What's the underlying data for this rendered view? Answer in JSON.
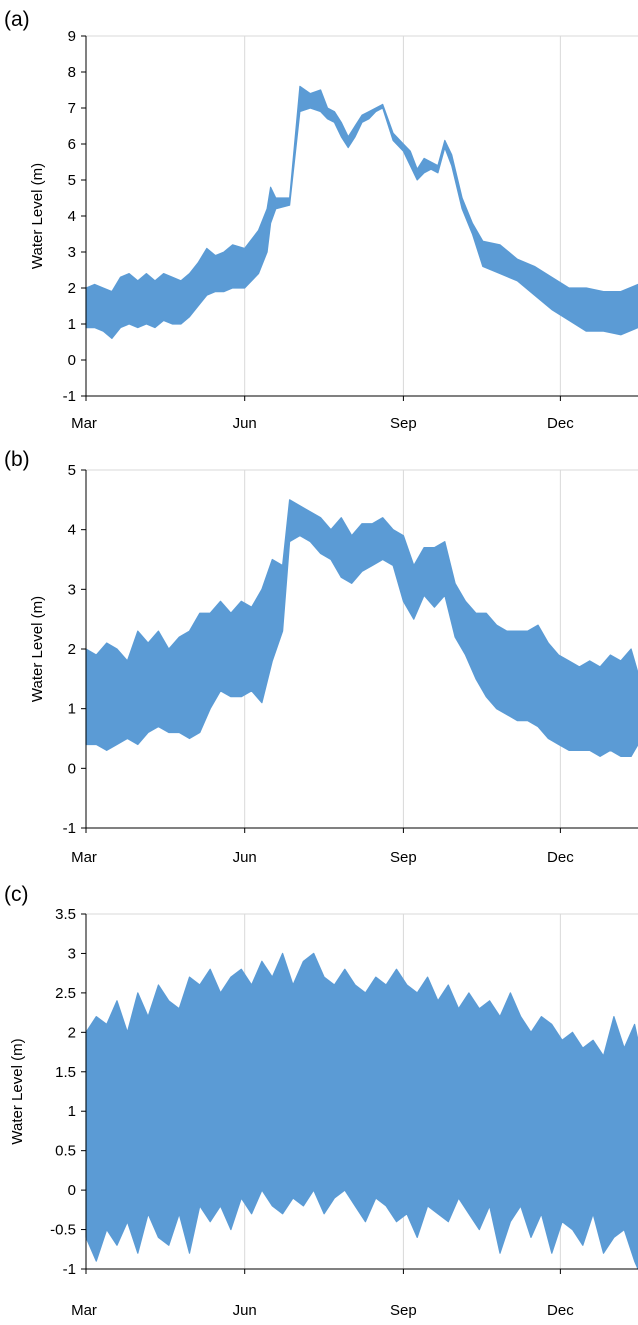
{
  "figure": {
    "series_color": "#5b9bd5",
    "grid_color": "#d9d9d9"
  },
  "chart_data": [
    {
      "panel_label": "(a)",
      "type": "area",
      "ylabel": "Water Level (m)",
      "xlabel": "",
      "x_ticks": [
        "Mar",
        "Jun",
        "Sep",
        "Dec"
      ],
      "x_tick_days": [
        0,
        92,
        184,
        275
      ],
      "xlim_days": [
        0,
        320
      ],
      "ylim": [
        -1,
        9
      ],
      "y_ticks": [
        "-1",
        "0",
        "1",
        "2",
        "3",
        "4",
        "5",
        "6",
        "7",
        "8",
        "9"
      ],
      "y_tick_values": [
        -1,
        0,
        1,
        2,
        3,
        4,
        5,
        6,
        7,
        8,
        9
      ],
      "grid": "vertical",
      "series": [
        {
          "day": [
            0,
            5,
            10,
            15,
            20,
            25,
            30,
            35,
            40,
            45,
            50,
            55,
            60,
            65,
            70,
            75,
            80,
            85,
            92,
            100,
            105,
            107,
            110,
            118,
            124,
            130,
            136,
            140,
            144,
            148,
            152,
            156,
            160,
            164,
            168,
            172,
            178,
            184,
            188,
            192,
            196,
            200,
            204,
            208,
            212,
            218,
            224,
            230,
            240,
            250,
            260,
            270,
            280,
            290,
            300,
            310,
            320
          ],
          "low": [
            0.9,
            0.9,
            0.8,
            0.6,
            0.9,
            1.0,
            0.9,
            1.0,
            0.9,
            1.1,
            1.0,
            1.0,
            1.2,
            1.5,
            1.8,
            1.9,
            1.9,
            2.0,
            2.0,
            2.4,
            3.0,
            3.8,
            4.2,
            4.3,
            6.9,
            7.0,
            6.9,
            6.7,
            6.6,
            6.2,
            5.9,
            6.2,
            6.6,
            6.7,
            6.9,
            7.0,
            6.1,
            5.8,
            5.4,
            5.0,
            5.2,
            5.3,
            5.2,
            5.9,
            5.4,
            4.2,
            3.5,
            2.6,
            2.4,
            2.2,
            1.8,
            1.4,
            1.1,
            0.8,
            0.8,
            0.7,
            0.9
          ],
          "high": [
            2.0,
            2.1,
            2.0,
            1.9,
            2.3,
            2.4,
            2.2,
            2.4,
            2.2,
            2.4,
            2.3,
            2.2,
            2.4,
            2.7,
            3.1,
            2.9,
            3.0,
            3.2,
            3.1,
            3.6,
            4.2,
            4.8,
            4.5,
            4.5,
            7.6,
            7.4,
            7.5,
            7.0,
            6.9,
            6.6,
            6.2,
            6.5,
            6.8,
            6.9,
            7.0,
            7.1,
            6.3,
            6.0,
            5.8,
            5.3,
            5.6,
            5.5,
            5.4,
            6.1,
            5.7,
            4.5,
            3.8,
            3.3,
            3.2,
            2.8,
            2.6,
            2.3,
            2.0,
            2.0,
            1.9,
            1.9,
            2.1
          ]
        }
      ]
    },
    {
      "panel_label": "(b)",
      "type": "area",
      "ylabel": "Water Level (m)",
      "xlabel": "",
      "x_ticks": [
        "Mar",
        "Jun",
        "Sep",
        "Dec"
      ],
      "x_tick_days": [
        0,
        92,
        184,
        275
      ],
      "xlim_days": [
        0,
        320
      ],
      "ylim": [
        -1,
        5
      ],
      "y_ticks": [
        "-1",
        "0",
        "1",
        "2",
        "3",
        "4",
        "5"
      ],
      "y_tick_values": [
        -1,
        0,
        1,
        2,
        3,
        4,
        5
      ],
      "grid": "vertical",
      "series": [
        {
          "day": [
            0,
            6,
            12,
            18,
            24,
            30,
            36,
            42,
            48,
            54,
            60,
            66,
            72,
            78,
            84,
            90,
            96,
            102,
            108,
            114,
            118,
            124,
            130,
            136,
            142,
            148,
            154,
            160,
            166,
            172,
            178,
            184,
            190,
            196,
            202,
            208,
            214,
            220,
            226,
            232,
            238,
            244,
            250,
            256,
            262,
            268,
            274,
            280,
            286,
            292,
            298,
            304,
            310,
            316,
            320
          ],
          "low": [
            0.4,
            0.4,
            0.3,
            0.4,
            0.5,
            0.4,
            0.6,
            0.7,
            0.6,
            0.6,
            0.5,
            0.6,
            1.0,
            1.3,
            1.2,
            1.2,
            1.3,
            1.1,
            1.8,
            2.3,
            3.8,
            3.9,
            3.8,
            3.6,
            3.5,
            3.2,
            3.1,
            3.3,
            3.4,
            3.5,
            3.4,
            2.8,
            2.5,
            2.9,
            2.7,
            2.9,
            2.2,
            1.9,
            1.5,
            1.2,
            1.0,
            0.9,
            0.8,
            0.8,
            0.7,
            0.5,
            0.4,
            0.3,
            0.3,
            0.3,
            0.2,
            0.3,
            0.2,
            0.2,
            0.4
          ],
          "high": [
            2.0,
            1.9,
            2.1,
            2.0,
            1.8,
            2.3,
            2.1,
            2.3,
            2.0,
            2.2,
            2.3,
            2.6,
            2.6,
            2.8,
            2.6,
            2.8,
            2.7,
            3.0,
            3.5,
            3.4,
            4.5,
            4.4,
            4.3,
            4.2,
            4.0,
            4.2,
            3.9,
            4.1,
            4.1,
            4.2,
            4.0,
            3.9,
            3.4,
            3.7,
            3.7,
            3.8,
            3.1,
            2.8,
            2.6,
            2.6,
            2.4,
            2.3,
            2.3,
            2.3,
            2.4,
            2.1,
            1.9,
            1.8,
            1.7,
            1.8,
            1.7,
            1.9,
            1.8,
            2.0,
            1.6
          ]
        }
      ]
    },
    {
      "panel_label": "(c)",
      "type": "area",
      "ylabel": "Water Level (m)",
      "xlabel": "",
      "x_ticks": [
        "Mar",
        "Jun",
        "Sep",
        "Dec"
      ],
      "x_tick_days": [
        0,
        92,
        184,
        275
      ],
      "xlim_days": [
        0,
        320
      ],
      "ylim": [
        -1,
        3.5
      ],
      "y_ticks": [
        "-1",
        "-0.5",
        "0",
        "0.5",
        "1",
        "1.5",
        "2",
        "2.5",
        "3",
        "3.5"
      ],
      "y_tick_values": [
        -1,
        -0.5,
        0,
        0.5,
        1,
        1.5,
        2,
        2.5,
        3,
        3.5
      ],
      "grid": "vertical",
      "series": [
        {
          "day": [
            0,
            6,
            12,
            18,
            24,
            30,
            36,
            42,
            48,
            54,
            60,
            66,
            72,
            78,
            84,
            90,
            96,
            102,
            108,
            114,
            120,
            126,
            132,
            138,
            144,
            150,
            156,
            162,
            168,
            174,
            180,
            186,
            192,
            198,
            204,
            210,
            216,
            222,
            228,
            234,
            240,
            246,
            252,
            258,
            264,
            270,
            276,
            282,
            288,
            294,
            300,
            306,
            312,
            318,
            320
          ],
          "low": [
            -0.6,
            -0.9,
            -0.5,
            -0.7,
            -0.4,
            -0.8,
            -0.3,
            -0.6,
            -0.7,
            -0.3,
            -0.8,
            -0.2,
            -0.4,
            -0.2,
            -0.5,
            -0.1,
            -0.3,
            0.0,
            -0.2,
            -0.3,
            -0.1,
            -0.2,
            0.0,
            -0.3,
            -0.1,
            0.0,
            -0.2,
            -0.4,
            -0.1,
            -0.2,
            -0.4,
            -0.3,
            -0.6,
            -0.2,
            -0.3,
            -0.4,
            -0.1,
            -0.3,
            -0.5,
            -0.2,
            -0.8,
            -0.4,
            -0.2,
            -0.6,
            -0.3,
            -0.8,
            -0.4,
            -0.5,
            -0.7,
            -0.3,
            -0.8,
            -0.6,
            -0.5,
            -0.9,
            -1.0
          ],
          "high": [
            2.0,
            2.2,
            2.1,
            2.4,
            2.0,
            2.5,
            2.2,
            2.6,
            2.4,
            2.3,
            2.7,
            2.6,
            2.8,
            2.5,
            2.7,
            2.8,
            2.6,
            2.9,
            2.7,
            3.0,
            2.6,
            2.9,
            3.0,
            2.7,
            2.6,
            2.8,
            2.6,
            2.5,
            2.7,
            2.6,
            2.8,
            2.6,
            2.5,
            2.7,
            2.4,
            2.6,
            2.3,
            2.5,
            2.3,
            2.4,
            2.2,
            2.5,
            2.2,
            2.0,
            2.2,
            2.1,
            1.9,
            2.0,
            1.8,
            1.9,
            1.7,
            2.2,
            1.8,
            2.1,
            1.9
          ]
        }
      ]
    }
  ]
}
